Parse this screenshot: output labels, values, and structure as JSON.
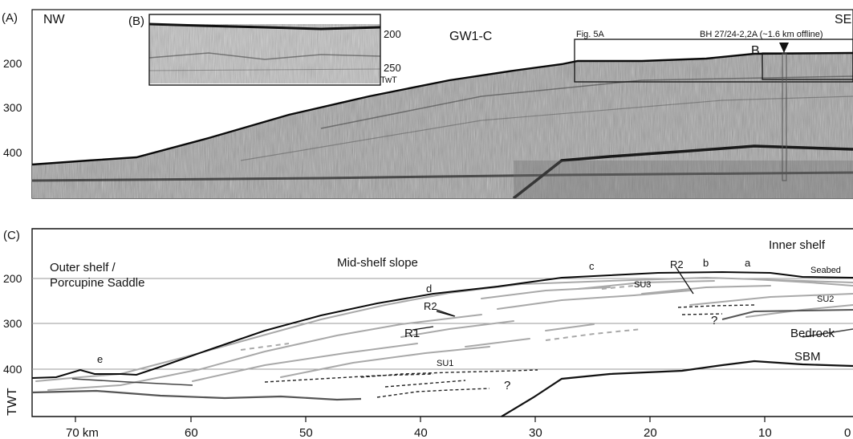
{
  "panel_a": {
    "label": "(A)",
    "nw": "NW",
    "se": "SE",
    "line_name": "GW1-C",
    "fig_box": "Fig. 5A",
    "borehole": "BH 27/24-2,2A (~1.6 km offline)",
    "box_b": "B",
    "y_ticks": [
      "200",
      "300",
      "400"
    ]
  },
  "panel_b": {
    "label": "(B)",
    "ticks": [
      "200",
      "250"
    ],
    "unit": "TwT"
  },
  "panel_c": {
    "label": "(C)",
    "outer_shelf_1": "Outer shelf /",
    "outer_shelf_2": "Porcupine Saddle",
    "mid_shelf": "Mid-shelf slope",
    "inner_shelf": "Inner shelf",
    "seabed": "Seabed",
    "bedrock": "Bedrock",
    "sbm": "SBM",
    "r1": "R1",
    "r2_left": "R2",
    "r2_right": "R2",
    "su1": "SU1",
    "su2": "SU2",
    "su3": "SU3",
    "q1": "?",
    "q2": "?",
    "pts": {
      "a": "a",
      "b": "b",
      "c": "c",
      "d": "d",
      "e": "e"
    },
    "y_ticks": [
      "200",
      "300",
      "400"
    ],
    "y_label": "TWT",
    "x_ticks": [
      "70 km",
      "60",
      "50",
      "40",
      "30",
      "20",
      "10",
      "0"
    ]
  }
}
